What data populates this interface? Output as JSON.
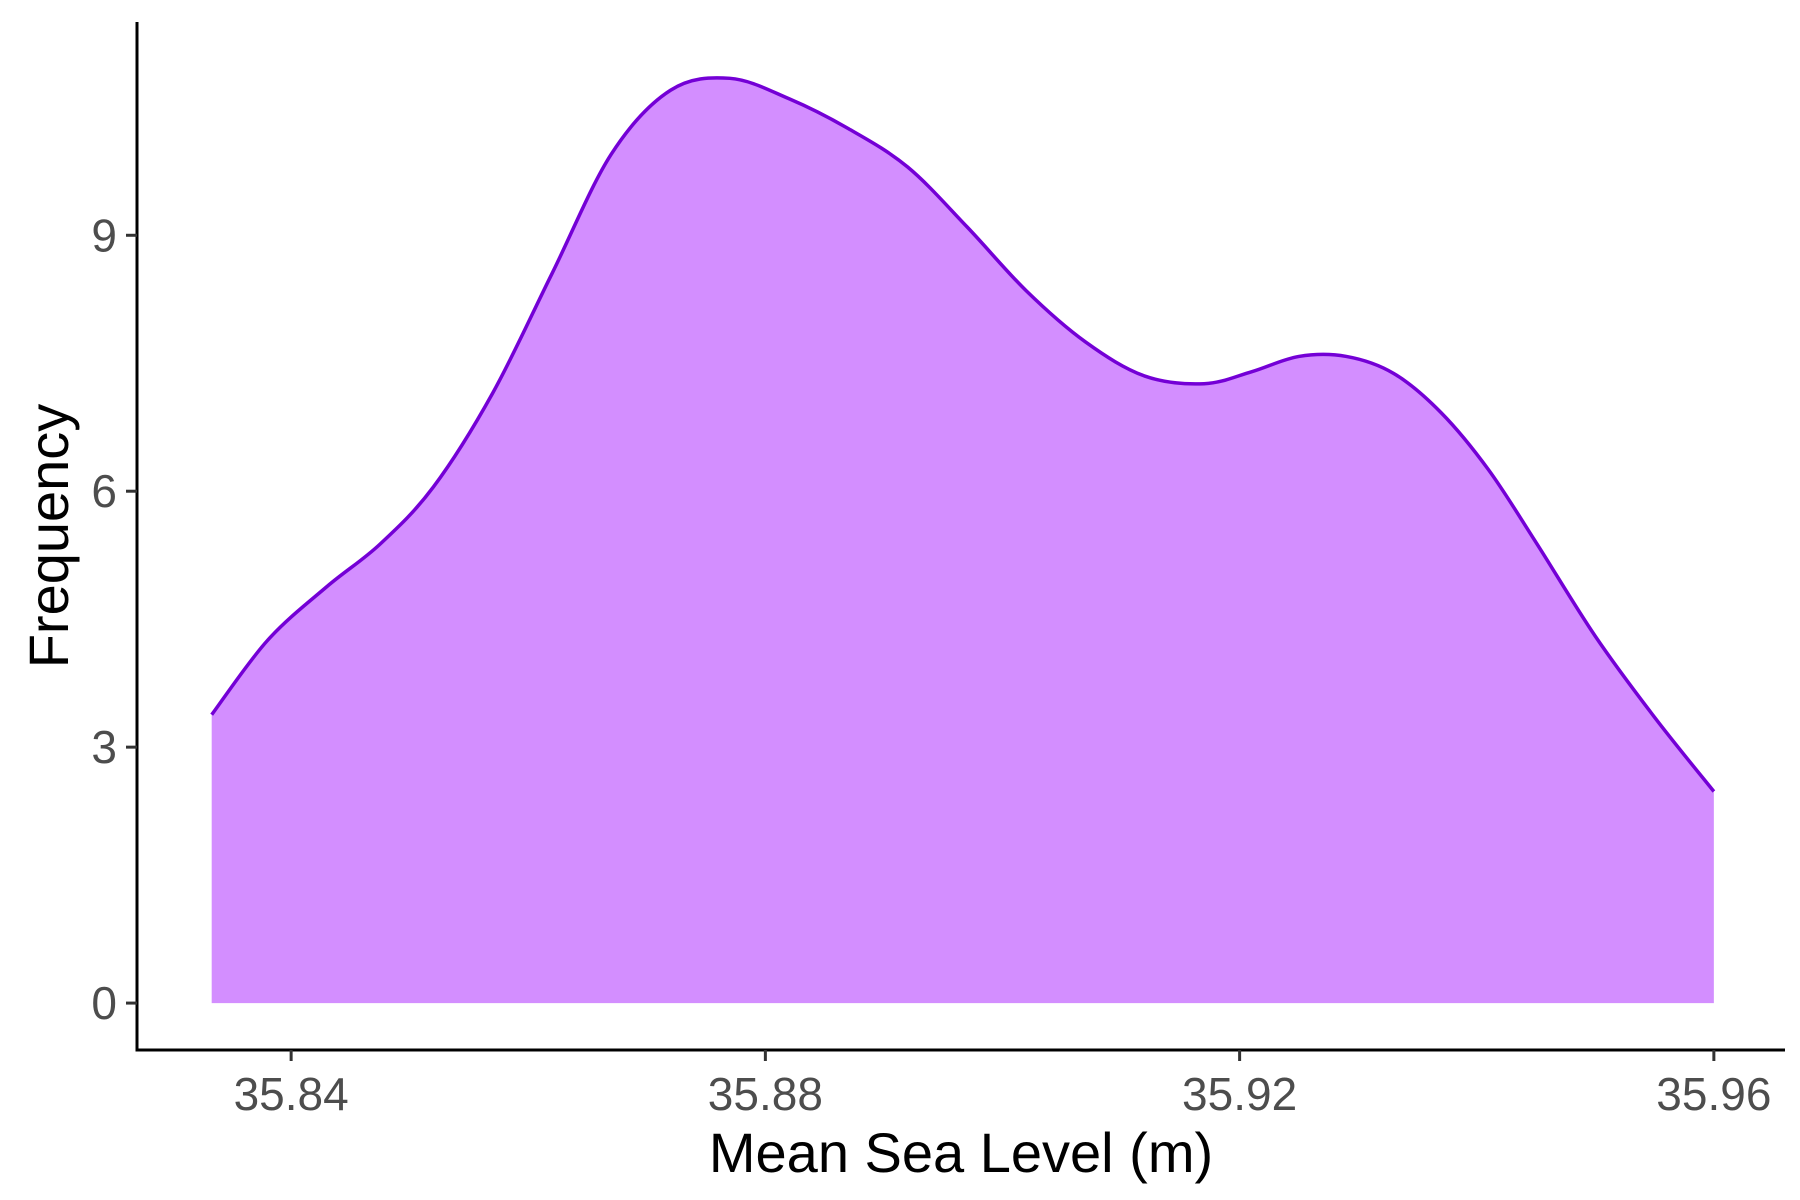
{
  "chart_data": {
    "type": "area",
    "title": "",
    "xlabel": "Mean Sea Level (m)",
    "ylabel": "Frequency",
    "xlim": [
      35.827,
      35.966
    ],
    "ylim": [
      -0.55,
      11.5
    ],
    "xticks": [
      35.84,
      35.88,
      35.92,
      35.96
    ],
    "xtick_labels": [
      "35.84",
      "35.88",
      "35.92",
      "35.96"
    ],
    "yticks": [
      0,
      3,
      6,
      9
    ],
    "ytick_labels": [
      "0",
      "3",
      "6",
      "9"
    ],
    "grid": false,
    "legend": "none",
    "fill_color": "#D38EFF",
    "line_color": "#7400D6",
    "x": [
      35.8333,
      35.838,
      35.843,
      35.8475,
      35.852,
      35.857,
      35.862,
      35.867,
      35.872,
      35.877,
      35.882,
      35.887,
      35.892,
      35.897,
      35.902,
      35.907,
      35.912,
      35.917,
      35.921,
      35.925,
      35.929,
      35.933,
      35.937,
      35.941,
      35.945,
      35.95,
      35.955,
      35.96
    ],
    "values": [
      3.38,
      4.25,
      4.88,
      5.38,
      6.05,
      7.15,
      8.55,
      9.95,
      10.7,
      10.84,
      10.6,
      10.25,
      9.8,
      9.1,
      8.35,
      7.75,
      7.35,
      7.26,
      7.4,
      7.58,
      7.58,
      7.38,
      6.92,
      6.25,
      5.4,
      4.3,
      3.35,
      2.48
    ]
  }
}
